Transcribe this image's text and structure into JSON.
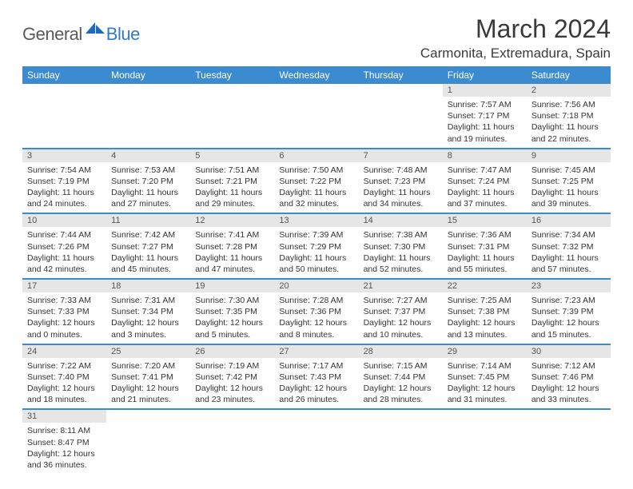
{
  "brand": {
    "general": "General",
    "blue": "Blue"
  },
  "title": "March 2024",
  "location": "Carmonita, Extremadura, Spain",
  "colors": {
    "header_bg": "#3b8bd0",
    "header_text": "#ffffff",
    "daynum_bg": "#e6e6e6",
    "row_separator": "#3b8bd0",
    "logo_gray": "#5a5a5a",
    "logo_blue": "#2f7cc4"
  },
  "weekdays": [
    "Sunday",
    "Monday",
    "Tuesday",
    "Wednesday",
    "Thursday",
    "Friday",
    "Saturday"
  ],
  "weeks": [
    [
      null,
      null,
      null,
      null,
      null,
      {
        "n": "1",
        "sunrise": "Sunrise: 7:57 AM",
        "sunset": "Sunset: 7:17 PM",
        "daylight": "Daylight: 11 hours and 19 minutes."
      },
      {
        "n": "2",
        "sunrise": "Sunrise: 7:56 AM",
        "sunset": "Sunset: 7:18 PM",
        "daylight": "Daylight: 11 hours and 22 minutes."
      }
    ],
    [
      {
        "n": "3",
        "sunrise": "Sunrise: 7:54 AM",
        "sunset": "Sunset: 7:19 PM",
        "daylight": "Daylight: 11 hours and 24 minutes."
      },
      {
        "n": "4",
        "sunrise": "Sunrise: 7:53 AM",
        "sunset": "Sunset: 7:20 PM",
        "daylight": "Daylight: 11 hours and 27 minutes."
      },
      {
        "n": "5",
        "sunrise": "Sunrise: 7:51 AM",
        "sunset": "Sunset: 7:21 PM",
        "daylight": "Daylight: 11 hours and 29 minutes."
      },
      {
        "n": "6",
        "sunrise": "Sunrise: 7:50 AM",
        "sunset": "Sunset: 7:22 PM",
        "daylight": "Daylight: 11 hours and 32 minutes."
      },
      {
        "n": "7",
        "sunrise": "Sunrise: 7:48 AM",
        "sunset": "Sunset: 7:23 PM",
        "daylight": "Daylight: 11 hours and 34 minutes."
      },
      {
        "n": "8",
        "sunrise": "Sunrise: 7:47 AM",
        "sunset": "Sunset: 7:24 PM",
        "daylight": "Daylight: 11 hours and 37 minutes."
      },
      {
        "n": "9",
        "sunrise": "Sunrise: 7:45 AM",
        "sunset": "Sunset: 7:25 PM",
        "daylight": "Daylight: 11 hours and 39 minutes."
      }
    ],
    [
      {
        "n": "10",
        "sunrise": "Sunrise: 7:44 AM",
        "sunset": "Sunset: 7:26 PM",
        "daylight": "Daylight: 11 hours and 42 minutes."
      },
      {
        "n": "11",
        "sunrise": "Sunrise: 7:42 AM",
        "sunset": "Sunset: 7:27 PM",
        "daylight": "Daylight: 11 hours and 45 minutes."
      },
      {
        "n": "12",
        "sunrise": "Sunrise: 7:41 AM",
        "sunset": "Sunset: 7:28 PM",
        "daylight": "Daylight: 11 hours and 47 minutes."
      },
      {
        "n": "13",
        "sunrise": "Sunrise: 7:39 AM",
        "sunset": "Sunset: 7:29 PM",
        "daylight": "Daylight: 11 hours and 50 minutes."
      },
      {
        "n": "14",
        "sunrise": "Sunrise: 7:38 AM",
        "sunset": "Sunset: 7:30 PM",
        "daylight": "Daylight: 11 hours and 52 minutes."
      },
      {
        "n": "15",
        "sunrise": "Sunrise: 7:36 AM",
        "sunset": "Sunset: 7:31 PM",
        "daylight": "Daylight: 11 hours and 55 minutes."
      },
      {
        "n": "16",
        "sunrise": "Sunrise: 7:34 AM",
        "sunset": "Sunset: 7:32 PM",
        "daylight": "Daylight: 11 hours and 57 minutes."
      }
    ],
    [
      {
        "n": "17",
        "sunrise": "Sunrise: 7:33 AM",
        "sunset": "Sunset: 7:33 PM",
        "daylight": "Daylight: 12 hours and 0 minutes."
      },
      {
        "n": "18",
        "sunrise": "Sunrise: 7:31 AM",
        "sunset": "Sunset: 7:34 PM",
        "daylight": "Daylight: 12 hours and 3 minutes."
      },
      {
        "n": "19",
        "sunrise": "Sunrise: 7:30 AM",
        "sunset": "Sunset: 7:35 PM",
        "daylight": "Daylight: 12 hours and 5 minutes."
      },
      {
        "n": "20",
        "sunrise": "Sunrise: 7:28 AM",
        "sunset": "Sunset: 7:36 PM",
        "daylight": "Daylight: 12 hours and 8 minutes."
      },
      {
        "n": "21",
        "sunrise": "Sunrise: 7:27 AM",
        "sunset": "Sunset: 7:37 PM",
        "daylight": "Daylight: 12 hours and 10 minutes."
      },
      {
        "n": "22",
        "sunrise": "Sunrise: 7:25 AM",
        "sunset": "Sunset: 7:38 PM",
        "daylight": "Daylight: 12 hours and 13 minutes."
      },
      {
        "n": "23",
        "sunrise": "Sunrise: 7:23 AM",
        "sunset": "Sunset: 7:39 PM",
        "daylight": "Daylight: 12 hours and 15 minutes."
      }
    ],
    [
      {
        "n": "24",
        "sunrise": "Sunrise: 7:22 AM",
        "sunset": "Sunset: 7:40 PM",
        "daylight": "Daylight: 12 hours and 18 minutes."
      },
      {
        "n": "25",
        "sunrise": "Sunrise: 7:20 AM",
        "sunset": "Sunset: 7:41 PM",
        "daylight": "Daylight: 12 hours and 21 minutes."
      },
      {
        "n": "26",
        "sunrise": "Sunrise: 7:19 AM",
        "sunset": "Sunset: 7:42 PM",
        "daylight": "Daylight: 12 hours and 23 minutes."
      },
      {
        "n": "27",
        "sunrise": "Sunrise: 7:17 AM",
        "sunset": "Sunset: 7:43 PM",
        "daylight": "Daylight: 12 hours and 26 minutes."
      },
      {
        "n": "28",
        "sunrise": "Sunrise: 7:15 AM",
        "sunset": "Sunset: 7:44 PM",
        "daylight": "Daylight: 12 hours and 28 minutes."
      },
      {
        "n": "29",
        "sunrise": "Sunrise: 7:14 AM",
        "sunset": "Sunset: 7:45 PM",
        "daylight": "Daylight: 12 hours and 31 minutes."
      },
      {
        "n": "30",
        "sunrise": "Sunrise: 7:12 AM",
        "sunset": "Sunset: 7:46 PM",
        "daylight": "Daylight: 12 hours and 33 minutes."
      }
    ],
    [
      {
        "n": "31",
        "sunrise": "Sunrise: 8:11 AM",
        "sunset": "Sunset: 8:47 PM",
        "daylight": "Daylight: 12 hours and 36 minutes."
      },
      null,
      null,
      null,
      null,
      null,
      null
    ]
  ]
}
